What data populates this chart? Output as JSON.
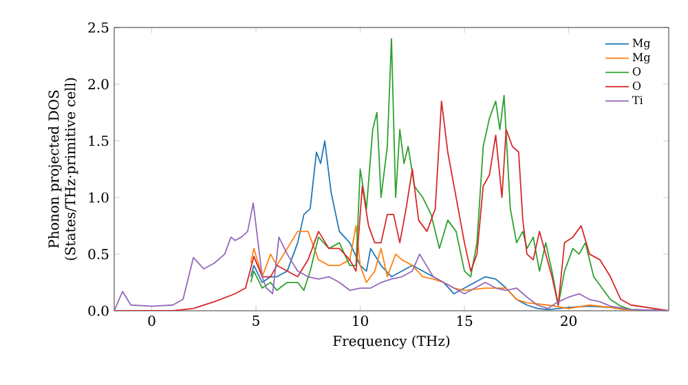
{
  "chart_data": {
    "type": "line",
    "xlabel": "Frequency (THz)",
    "ylabel": "Phonon projected DOS\n(States/THz·primitive cell)",
    "xlim": [
      -1.8,
      24.8
    ],
    "ylim": [
      0,
      2.5
    ],
    "xticks": [
      0,
      5,
      10,
      15,
      20
    ],
    "yticks": [
      {
        "value": 0,
        "label": "0.0"
      },
      0.5,
      {
        "value": 1,
        "label": "1.0"
      },
      1.5,
      {
        "value": 2,
        "label": "2.0"
      },
      2.5
    ],
    "grid": false,
    "legend": "top right",
    "marker": "none",
    "line_style": "solid",
    "series": [
      {
        "name": "Mg",
        "color": "#1f77b4",
        "x": [
          4.75,
          4.9,
          5.3,
          5.7,
          6,
          6.5,
          7,
          7.3,
          7.6,
          7.9,
          8.1,
          8.3,
          8.6,
          9,
          9.5,
          10,
          10.3,
          10.5,
          11,
          11.5,
          12,
          12.5,
          13,
          13.5,
          14,
          14.5,
          15,
          15.5,
          16,
          16.5,
          17,
          17.5,
          18,
          18.5,
          19,
          20,
          21,
          22,
          23,
          24.8
        ],
        "values": [
          0.3,
          0.4,
          0.25,
          0.3,
          0.3,
          0.35,
          0.6,
          0.85,
          0.9,
          1.4,
          1.3,
          1.5,
          1.05,
          0.7,
          0.6,
          0.4,
          0.35,
          0.55,
          0.4,
          0.3,
          0.35,
          0.4,
          0.35,
          0.3,
          0.25,
          0.15,
          0.2,
          0.25,
          0.3,
          0.28,
          0.2,
          0.1,
          0.05,
          0.02,
          0.01,
          0.03,
          0.04,
          0.03,
          0.01,
          0
        ]
      },
      {
        "name": "Mg",
        "color": "#ff7f0e",
        "x": [
          4.75,
          4.9,
          5.3,
          5.7,
          6,
          6.5,
          7,
          7.5,
          8,
          8.5,
          9,
          9.5,
          9.8,
          10,
          10.3,
          10.7,
          11,
          11.3,
          11.7,
          12,
          12.5,
          13,
          13.5,
          14,
          14.5,
          15,
          16,
          17,
          17.5,
          18,
          19,
          20,
          21,
          22,
          23,
          24.8
        ],
        "values": [
          0.42,
          0.55,
          0.3,
          0.5,
          0.4,
          0.55,
          0.7,
          0.7,
          0.45,
          0.4,
          0.4,
          0.45,
          0.75,
          0.4,
          0.25,
          0.35,
          0.55,
          0.3,
          0.5,
          0.45,
          0.4,
          0.3,
          0.28,
          0.25,
          0.2,
          0.18,
          0.2,
          0.2,
          0.1,
          0.07,
          0.05,
          0.02,
          0.05,
          0.03,
          0,
          0
        ]
      },
      {
        "name": "O",
        "color": "#2ca02c",
        "x": [
          4.75,
          4.9,
          5.3,
          5.7,
          6,
          6.5,
          7,
          7.3,
          7.6,
          8,
          8.5,
          9,
          9.5,
          9.8,
          10,
          10.3,
          10.6,
          10.8,
          11,
          11.3,
          11.5,
          11.7,
          11.9,
          12.1,
          12.3,
          12.6,
          13,
          13.4,
          13.8,
          14.2,
          14.6,
          15,
          15.3,
          15.6,
          15.9,
          16.2,
          16.5,
          16.7,
          16.9,
          17.2,
          17.5,
          17.8,
          18,
          18.3,
          18.6,
          18.9,
          19.2,
          19.5,
          19.8,
          20.2,
          20.5,
          20.8,
          21.2,
          21.6,
          22,
          22.5,
          23,
          24.8
        ],
        "values": [
          0.25,
          0.35,
          0.2,
          0.25,
          0.18,
          0.25,
          0.25,
          0.18,
          0.35,
          0.65,
          0.55,
          0.6,
          0.4,
          0.4,
          1.25,
          0.9,
          1.6,
          1.75,
          1.0,
          1.45,
          2.4,
          1.0,
          1.6,
          1.3,
          1.45,
          1.1,
          1.0,
          0.85,
          0.55,
          0.8,
          0.7,
          0.35,
          0.3,
          0.6,
          1.45,
          1.7,
          1.85,
          1.6,
          1.9,
          0.9,
          0.6,
          0.7,
          0.55,
          0.65,
          0.35,
          0.6,
          0.35,
          0.05,
          0.35,
          0.55,
          0.5,
          0.6,
          0.3,
          0.2,
          0.1,
          0.04,
          0.01,
          0
        ]
      },
      {
        "name": "O",
        "color": "#d62728",
        "x": [
          -1.8,
          1,
          2,
          3,
          4,
          4.5,
          4.9,
          5.3,
          5.7,
          6,
          6.5,
          7,
          7.5,
          8,
          8.5,
          9,
          9.5,
          9.8,
          10.1,
          10.4,
          10.7,
          11,
          11.3,
          11.6,
          11.9,
          12.2,
          12.5,
          12.8,
          13.2,
          13.6,
          13.9,
          14.2,
          14.6,
          15,
          15.3,
          15.6,
          15.9,
          16.2,
          16.5,
          16.8,
          17,
          17.3,
          17.6,
          17.8,
          18,
          18.3,
          18.6,
          18.9,
          19.2,
          19.5,
          19.8,
          20.2,
          20.6,
          21,
          21.5,
          22,
          22.5,
          23,
          24.8
        ],
        "values": [
          0,
          0,
          0.02,
          0.08,
          0.15,
          0.2,
          0.48,
          0.3,
          0.3,
          0.4,
          0.35,
          0.3,
          0.45,
          0.7,
          0.55,
          0.55,
          0.45,
          0.35,
          1.1,
          0.75,
          0.6,
          0.6,
          0.85,
          0.85,
          0.6,
          0.9,
          1.25,
          0.8,
          0.7,
          0.9,
          1.85,
          1.4,
          1.0,
          0.6,
          0.35,
          0.5,
          1.1,
          1.2,
          1.55,
          1.0,
          1.6,
          1.45,
          1.4,
          0.8,
          0.5,
          0.45,
          0.7,
          0.5,
          0.3,
          0.05,
          0.6,
          0.65,
          0.75,
          0.5,
          0.45,
          0.3,
          0.1,
          0.05,
          0
        ]
      },
      {
        "name": "Ti",
        "color": "#9467bd",
        "x": [
          -1.8,
          -1.4,
          -1,
          0,
          1,
          1.5,
          2,
          2.5,
          3,
          3.5,
          3.8,
          4,
          4.3,
          4.6,
          4.87,
          5.3,
          5.5,
          5.8,
          6.1,
          6.5,
          7,
          7.5,
          8,
          8.5,
          9,
          9.5,
          10,
          10.5,
          11,
          11.5,
          12,
          12.5,
          12.85,
          13.5,
          14,
          14.5,
          15,
          15.5,
          16,
          16.5,
          17,
          17.5,
          18,
          18.5,
          19,
          19.5,
          20,
          20.5,
          21,
          21.5,
          22,
          23,
          24.8
        ],
        "values": [
          0,
          0.17,
          0.05,
          0.04,
          0.05,
          0.1,
          0.47,
          0.37,
          0.42,
          0.5,
          0.65,
          0.62,
          0.65,
          0.7,
          0.95,
          0.3,
          0.2,
          0.15,
          0.65,
          0.5,
          0.35,
          0.3,
          0.28,
          0.3,
          0.25,
          0.18,
          0.2,
          0.2,
          0.25,
          0.28,
          0.3,
          0.35,
          0.5,
          0.3,
          0.25,
          0.2,
          0.15,
          0.2,
          0.25,
          0.2,
          0.18,
          0.2,
          0.12,
          0.05,
          0.02,
          0.08,
          0.12,
          0.15,
          0.1,
          0.08,
          0.04,
          0.01,
          0
        ]
      }
    ]
  }
}
